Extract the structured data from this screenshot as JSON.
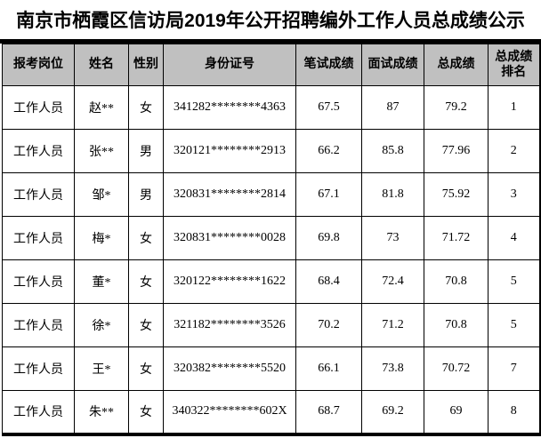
{
  "page": {
    "title": "南京市栖霞区信访局2019年公开招聘编外工作人员总成绩公示"
  },
  "colors": {
    "header_bg": "#c0c0c0",
    "border": "#000000",
    "text": "#000000",
    "background": "#ffffff"
  },
  "table": {
    "headers": {
      "position": "报考岗位",
      "name": "姓名",
      "gender": "性别",
      "id_number": "身份证号",
      "written_score": "笔试成绩",
      "interview_score": "面试成绩",
      "total_score": "总成绩",
      "rank_line1": "总成绩",
      "rank_line2": "排名"
    },
    "column_keys": [
      "position",
      "name",
      "gender",
      "id_number",
      "written_score",
      "interview_score",
      "total_score",
      "rank"
    ],
    "rows": [
      [
        "工作人员",
        "赵**",
        "女",
        "341282********4363",
        "67.5",
        "87",
        "79.2",
        "1"
      ],
      [
        "工作人员",
        "张**",
        "男",
        "320121********2913",
        "66.2",
        "85.8",
        "77.96",
        "2"
      ],
      [
        "工作人员",
        "邹*",
        "男",
        "320831********2814",
        "67.1",
        "81.8",
        "75.92",
        "3"
      ],
      [
        "工作人员",
        "梅*",
        "女",
        "320831********0028",
        "69.8",
        "73",
        "71.72",
        "4"
      ],
      [
        "工作人员",
        "董*",
        "女",
        "320122********1622",
        "68.4",
        "72.4",
        "70.8",
        "5"
      ],
      [
        "工作人员",
        "徐*",
        "女",
        "321182********3526",
        "70.2",
        "71.2",
        "70.8",
        "5"
      ],
      [
        "工作人员",
        "王*",
        "女",
        "320382********5520",
        "66.1",
        "73.8",
        "70.72",
        "7"
      ],
      [
        "工作人员",
        "朱**",
        "女",
        "340322********602X",
        "68.7",
        "69.2",
        "69",
        "8"
      ]
    ]
  }
}
